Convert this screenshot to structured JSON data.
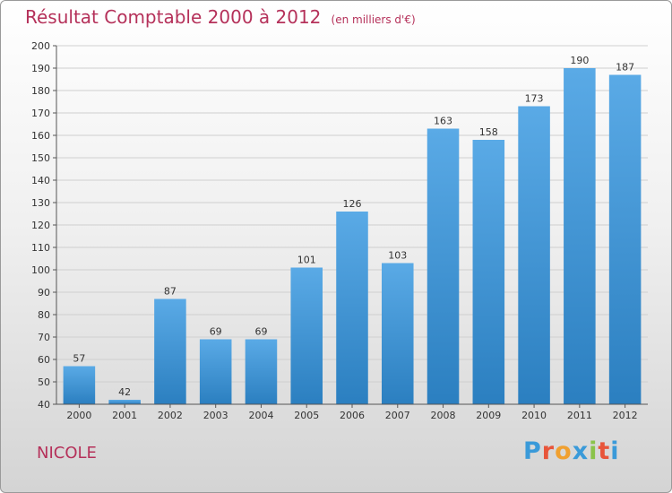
{
  "title": "Résultat Comptable 2000 à 2012",
  "subtitle": "(en milliers d'€)",
  "commune": "NICOLE",
  "logo": {
    "text": "Proxiti",
    "letters": [
      "P",
      "r",
      "o",
      "x",
      "i",
      "t",
      "i"
    ],
    "colors": [
      "#3a9ad9",
      "#e8553a",
      "#f0a030",
      "#3a9ad9",
      "#8bc34a",
      "#e8553a",
      "#3a9ad9"
    ]
  },
  "colors": {
    "bar_top": "#5aaae6",
    "bar_bottom": "#2b7fc0",
    "title": "#b5315a",
    "grid": "#cfcfcf"
  },
  "chart_data": {
    "type": "bar",
    "title": "Résultat Comptable 2000 à 2012",
    "subtitle": "(en milliers d'€)",
    "categories": [
      "2000",
      "2001",
      "2002",
      "2003",
      "2004",
      "2005",
      "2006",
      "2007",
      "2008",
      "2009",
      "2010",
      "2011",
      "2012"
    ],
    "values": [
      57,
      42,
      87,
      69,
      69,
      101,
      126,
      103,
      163,
      158,
      173,
      190,
      187
    ],
    "ylim": [
      40,
      200
    ],
    "ytick_step": 10,
    "xlabel": "",
    "ylabel": "",
    "grid": true,
    "data_labels": true
  }
}
